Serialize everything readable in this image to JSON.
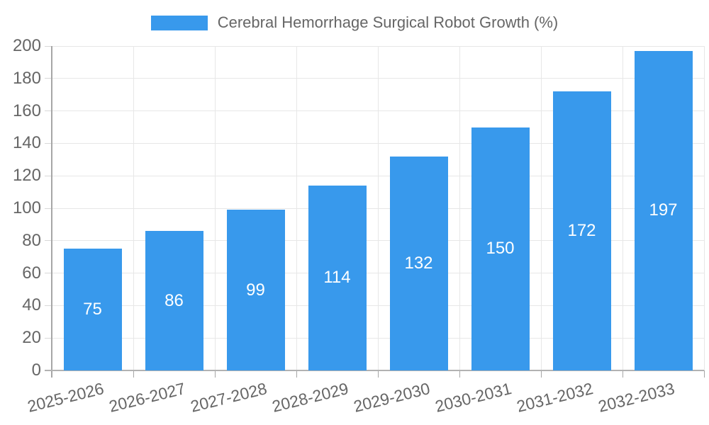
{
  "legend": {
    "label": "Cerebral Hemorrhage Surgical Robot Growth (%)",
    "swatch_color": "#3899ec"
  },
  "chart_data": {
    "type": "bar",
    "title": "Cerebral Hemorrhage Surgical Robot Growth (%)",
    "categories": [
      "2025-2026",
      "2026-2027",
      "2027-2028",
      "2028-2029",
      "2029-2030",
      "2030-2031",
      "2031-2032",
      "2032-2033"
    ],
    "values": [
      75,
      86,
      99,
      114,
      132,
      150,
      172,
      197
    ],
    "value_labels": [
      "75",
      "86",
      "99",
      "114",
      "132",
      "150",
      "172",
      "197"
    ],
    "xlabel": "",
    "ylabel": "",
    "ylim": [
      0,
      200
    ],
    "yticks": [
      0,
      20,
      40,
      60,
      80,
      100,
      120,
      140,
      160,
      180,
      200
    ],
    "grid": true,
    "legend_position": "top",
    "colors": {
      "bar": "#3899ec",
      "bar_value_text": "#ffffff",
      "tick_text": "#666666",
      "legend_text": "#666666",
      "gridline": "#e7e7e7",
      "axis_line": "#a6a6a6"
    }
  }
}
